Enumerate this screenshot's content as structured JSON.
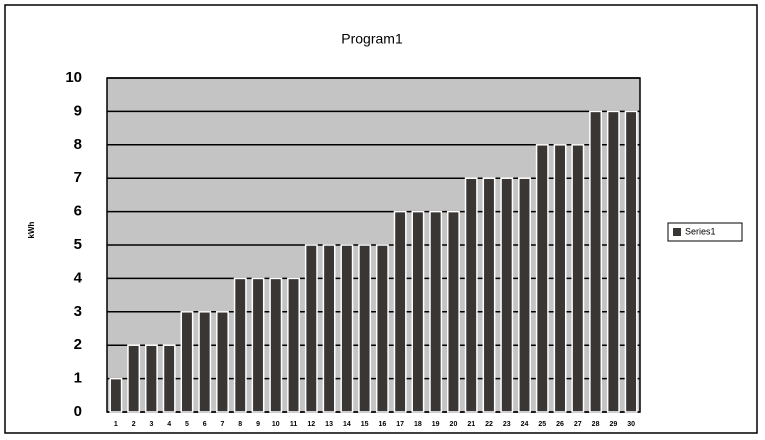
{
  "chart_data": {
    "type": "bar",
    "title": "Program1",
    "y_label": "kWh",
    "categories": [
      "1",
      "2",
      "3",
      "4",
      "5",
      "6",
      "7",
      "8",
      "9",
      "10",
      "11",
      "12",
      "13",
      "14",
      "15",
      "16",
      "17",
      "18",
      "19",
      "20",
      "21",
      "22",
      "23",
      "24",
      "25",
      "26",
      "27",
      "28",
      "29",
      "30"
    ],
    "series": [
      {
        "name": "Series1",
        "color": "#3a3634",
        "values": [
          1,
          2,
          2,
          2,
          3,
          3,
          3,
          4,
          4,
          4,
          4,
          5,
          5,
          5,
          5,
          5,
          6,
          6,
          6,
          6,
          7,
          7,
          7,
          7,
          8,
          8,
          8,
          9,
          9,
          9
        ]
      }
    ],
    "ylim": [
      0,
      10
    ],
    "yticks": [
      0,
      1,
      2,
      3,
      4,
      5,
      6,
      7,
      8,
      9,
      10
    ],
    "grid": true,
    "legend": "right"
  }
}
